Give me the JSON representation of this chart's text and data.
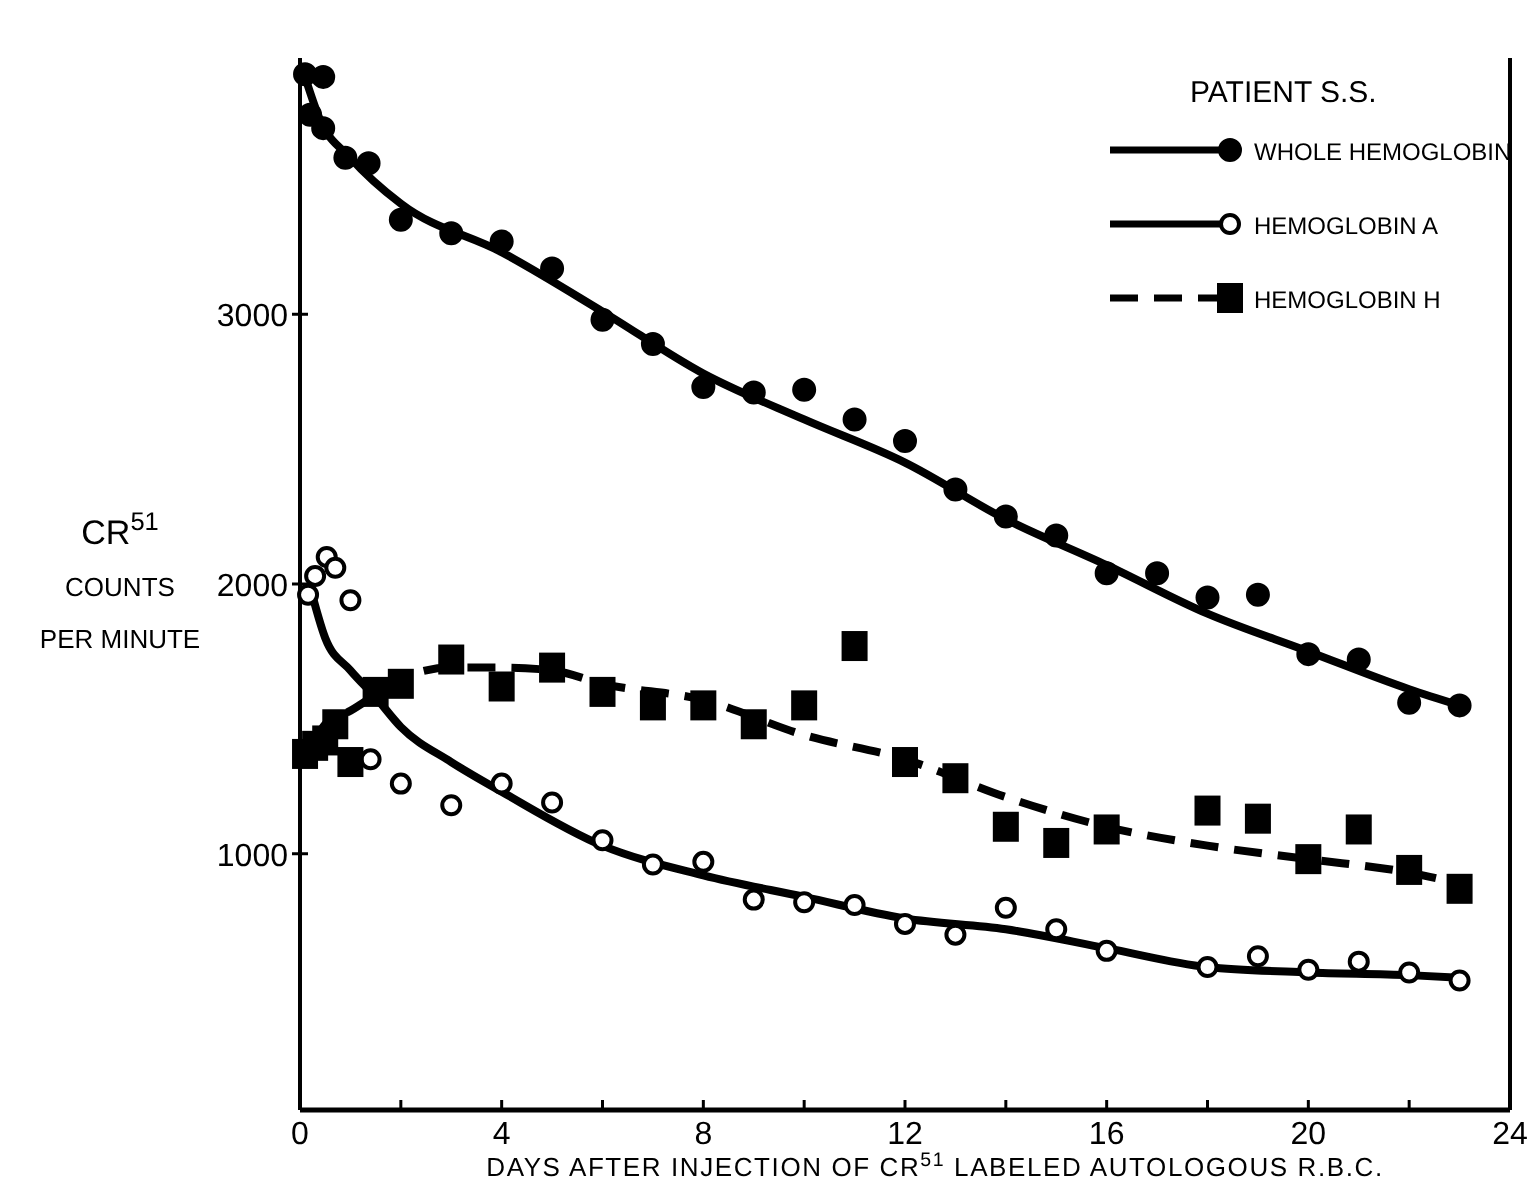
{
  "chart_data": {
    "type": "scatter",
    "xlabel": "DAYS AFTER INJECTION OF CR$^{51}$ LABELED AUTOLOGOUS R.B.C.",
    "ylabel": "CR$^{51}$\nCOUNTS\nPER MINUTE",
    "legend_title": "PATIENT S.S.",
    "legend": "top right",
    "grid": false,
    "xlim": [
      0,
      24
    ],
    "xticks": [
      0,
      {
        "value": 2,
        "label": null
      },
      4,
      {
        "value": 6,
        "label": null
      },
      8,
      {
        "value": 10,
        "label": null
      },
      12,
      {
        "value": 14,
        "label": null
      },
      16,
      {
        "value": 18,
        "label": null
      },
      20,
      {
        "value": 22,
        "label": null
      },
      24
    ],
    "ylim": [
      50,
      3950
    ],
    "yticks": [
      1000,
      2000,
      3000
    ],
    "series": [
      {
        "name": "WHOLE HEMOGLOBIN",
        "color": "#000000",
        "marker": "circle",
        "line_style": "solid",
        "x": [
          0.1,
          0.46,
          0.2,
          0.46,
          0.9,
          1.36,
          2,
          3,
          4,
          5,
          6,
          7,
          8,
          9,
          10,
          11,
          12,
          13,
          14,
          15,
          16,
          17,
          18,
          19,
          20,
          21,
          22,
          23
        ],
        "values": [
          3890,
          3880,
          3740,
          3690,
          3580,
          3560,
          3350,
          3300,
          3270,
          3170,
          2980,
          2890,
          2730,
          2710,
          2720,
          2610,
          2530,
          2350,
          2250,
          2180,
          2040,
          2040,
          1950,
          1960,
          1740,
          1720,
          1560,
          1550
        ]
      },
      {
        "type": "line",
        "color": "#000000",
        "line_style": "solid",
        "x": [
          0.1,
          0.4,
          1,
          2,
          4,
          6,
          8,
          10,
          12,
          14,
          16,
          18,
          20,
          22,
          23
        ],
        "values": [
          3880,
          3720,
          3580,
          3410,
          3230,
          3010,
          2780,
          2610,
          2450,
          2240,
          2070,
          1890,
          1750,
          1610,
          1550
        ]
      },
      {
        "name": "HEMOGLOBIN A",
        "color": "#ffffff",
        "marker": "circle",
        "line_style": "solid",
        "x": [
          0.16,
          0.3,
          0.53,
          0.7,
          1,
          1.4,
          2,
          3,
          4,
          5,
          6,
          7,
          8,
          9,
          10,
          11,
          12,
          13,
          14,
          15,
          16,
          18,
          19,
          20,
          21,
          22,
          23
        ],
        "values": [
          1960,
          2030,
          2100,
          2060,
          1940,
          1350,
          1260,
          1180,
          1260,
          1190,
          1050,
          960,
          970,
          830,
          820,
          810,
          740,
          700,
          800,
          720,
          640,
          580,
          620,
          570,
          600,
          560,
          530
        ]
      },
      {
        "type": "line",
        "color": "#000000",
        "line_style": "solid",
        "x": [
          0.2,
          0.5,
          1,
          1.5,
          2,
          3,
          4,
          6,
          8,
          10,
          12,
          14,
          16,
          18,
          20,
          22,
          23
        ],
        "values": [
          1990,
          1800,
          1680,
          1580,
          1470,
          1340,
          1230,
          1030,
          920,
          840,
          760,
          720,
          650,
          580,
          560,
          550,
          540
        ]
      },
      {
        "name": "HEMOGLOBIN H",
        "color": "#000000",
        "marker": "square",
        "line_style": "dashed",
        "x": [
          0.1,
          0.3,
          0.5,
          0.7,
          1,
          1.5,
          2,
          3,
          4,
          5,
          6,
          7,
          8,
          9,
          10,
          11,
          12,
          13,
          14,
          15,
          16,
          18,
          19,
          20,
          21,
          22,
          23
        ],
        "values": [
          1370,
          1400,
          1420,
          1480,
          1340,
          1600,
          1630,
          1720,
          1620,
          1690,
          1600,
          1550,
          1550,
          1480,
          1550,
          1770,
          1340,
          1280,
          1100,
          1040,
          1090,
          1160,
          1130,
          980,
          1090,
          940,
          870
        ]
      },
      {
        "type": "line",
        "color": "#000000",
        "line_style": "dashed",
        "x": [
          0.3,
          0.5,
          1,
          1.5,
          2,
          3,
          4,
          5,
          6,
          8,
          10,
          12,
          14,
          16,
          18,
          20,
          22,
          23
        ],
        "values": [
          1420,
          1480,
          1530,
          1590,
          1650,
          1690,
          1690,
          1680,
          1630,
          1570,
          1440,
          1350,
          1210,
          1100,
          1030,
          980,
          930,
          890
        ]
      }
    ]
  }
}
